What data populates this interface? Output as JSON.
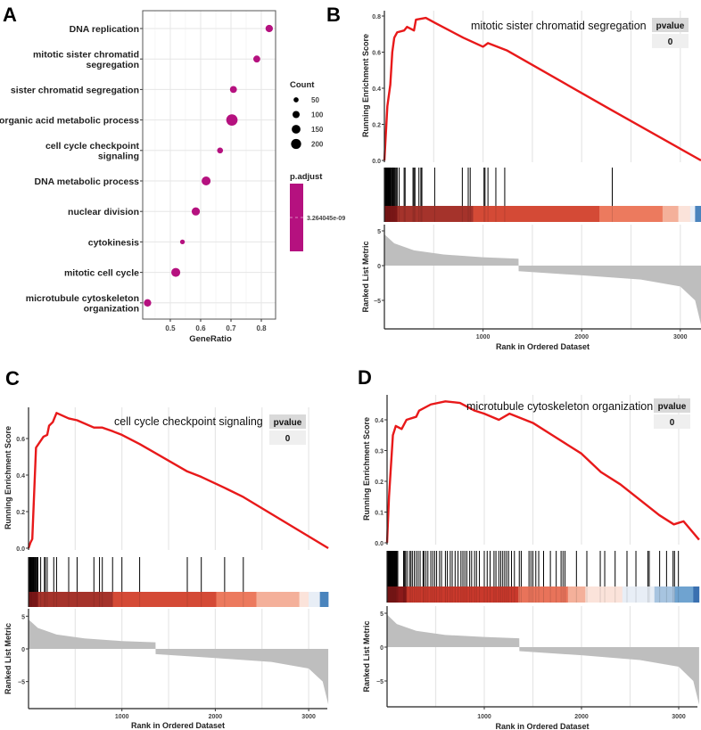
{
  "chart_data": [
    {
      "panel": "A",
      "type": "scatter",
      "title": "",
      "xlabel": "GeneRatio",
      "ylabel": "",
      "xlim": [
        0.409,
        0.847
      ],
      "xticks": [
        0.5,
        0.6,
        0.7,
        0.8
      ],
      "categories": [
        [
          "DNA replication"
        ],
        [
          "mitotic sister chromatid",
          "segregation"
        ],
        [
          "sister chromatid segregation"
        ],
        [
          "organic acid metabolic process"
        ],
        [
          "cell cycle checkpoint",
          "signaling"
        ],
        [
          "DNA metabolic process"
        ],
        [
          "nuclear division"
        ],
        [
          "cytokinesis"
        ],
        [
          "mitotic cell cycle"
        ],
        [
          "microtubule cytoskeleton",
          "organization"
        ]
      ],
      "gene_ratio": [
        0.826,
        0.785,
        0.708,
        0.703,
        0.664,
        0.618,
        0.584,
        0.54,
        0.518,
        0.425
      ],
      "count": [
        85,
        75,
        75,
        200,
        55,
        125,
        105,
        35,
        125,
        85
      ],
      "p_adjust": [
        3.264045e-09,
        3.264045e-09,
        3.264045e-09,
        3.264045e-09,
        3.264045e-09,
        3.264045e-09,
        3.264045e-09,
        3.264045e-09,
        3.264045e-09,
        3.264045e-09
      ],
      "point_color": "#b5117f",
      "legend": {
        "size_title": "Count",
        "size_values": [
          50,
          100,
          150,
          200
        ],
        "size_labels": [
          "50",
          "100",
          "150",
          "200"
        ],
        "color_title": "p.adjust",
        "color_label": "3.264045e-09",
        "placement": "right"
      }
    },
    {
      "panel": "B",
      "type": "line",
      "title": "mitotic sister chromatid segregation",
      "pvalue_header": "pvalue",
      "pvalue": "0",
      "ylabel": "Running Enrichment Score",
      "ylabel2": "Ranked List Metric",
      "xlabel": "Rank in Ordered Dataset",
      "xlim": [
        0,
        3210
      ],
      "xticks": [
        1000,
        2000,
        3000
      ],
      "xtick_labels": [
        "1000",
        "2000",
        "3000"
      ],
      "ylim": [
        0,
        0.8
      ],
      "yticks": [
        0,
        0.2,
        0.4,
        0.6,
        0.8
      ],
      "ytick_labels": [
        "0.0",
        "0.2",
        "0.4",
        "0.6",
        "0.8"
      ],
      "ylim2": [
        -8.5,
        5.5
      ],
      "yticks2": [
        5,
        0,
        -5
      ],
      "ytick_labels2": [
        "5",
        "0",
        "−5"
      ],
      "es": [
        [
          0,
          0
        ],
        [
          30,
          0.3
        ],
        [
          60,
          0.42
        ],
        [
          80,
          0.6
        ],
        [
          100,
          0.68
        ],
        [
          130,
          0.71
        ],
        [
          200,
          0.72
        ],
        [
          230,
          0.74
        ],
        [
          300,
          0.72
        ],
        [
          320,
          0.78
        ],
        [
          420,
          0.79
        ],
        [
          520,
          0.76
        ],
        [
          800,
          0.68
        ],
        [
          1000,
          0.63
        ],
        [
          1050,
          0.65
        ],
        [
          1240,
          0.61
        ],
        [
          2300,
          0.28
        ],
        [
          3210,
          0
        ]
      ],
      "hits": [
        2,
        8,
        14,
        20,
        26,
        32,
        38,
        44,
        50,
        56,
        62,
        70,
        78,
        86,
        94,
        102,
        110,
        120,
        130,
        150,
        200,
        210,
        290,
        300,
        310,
        350,
        370,
        380,
        510,
        790,
        850,
        870,
        1010,
        1020,
        1050,
        1130,
        1220,
        2310
      ],
      "color_bar": [
        [
          0,
          130,
          "#8b1a1a"
        ],
        [
          130,
          900,
          "#a5332b"
        ],
        [
          900,
          2180,
          "#d44a36"
        ],
        [
          2180,
          2820,
          "#ec7a5e"
        ],
        [
          2820,
          2980,
          "#f4b09a"
        ],
        [
          2980,
          3100,
          "#fbe3da"
        ],
        [
          3100,
          3150,
          "#e8eef6"
        ],
        [
          3150,
          3210,
          "#4a84bd"
        ]
      ],
      "ranked": [
        [
          0,
          4.5
        ],
        [
          100,
          3.2
        ],
        [
          300,
          2.2
        ],
        [
          600,
          1.6
        ],
        [
          1000,
          1.2
        ],
        [
          1360,
          1.0
        ],
        [
          1361,
          -0.8
        ],
        [
          2000,
          -1.4
        ],
        [
          2600,
          -2.0
        ],
        [
          3000,
          -3.0
        ],
        [
          3150,
          -5
        ],
        [
          3210,
          -8.5
        ]
      ]
    },
    {
      "panel": "C",
      "type": "line",
      "title": "cell cycle checkpoint signaling",
      "pvalue_header": "pvalue",
      "pvalue": "0",
      "ylabel": "Running Enrichment Score",
      "ylabel2": "Ranked List Metric",
      "xlabel": "Rank in Ordered Dataset",
      "xlim": [
        0,
        3210
      ],
      "xticks": [
        1000,
        2000,
        3000
      ],
      "xtick_labels": [
        "1000",
        "2000",
        "3000"
      ],
      "ylim": [
        0,
        0.75
      ],
      "yticks": [
        0,
        0.2,
        0.4,
        0.6
      ],
      "ytick_labels": [
        "0.0",
        "0.2",
        "0.4",
        "0.6"
      ],
      "ylim2": [
        -8.5,
        5.5
      ],
      "yticks2": [
        5,
        0,
        -5
      ],
      "ytick_labels2": [
        "5",
        "0",
        "−5"
      ],
      "es": [
        [
          0,
          0
        ],
        [
          20,
          0.03
        ],
        [
          40,
          0.05
        ],
        [
          60,
          0.3
        ],
        [
          80,
          0.55
        ],
        [
          120,
          0.58
        ],
        [
          160,
          0.61
        ],
        [
          200,
          0.62
        ],
        [
          220,
          0.67
        ],
        [
          260,
          0.69
        ],
        [
          300,
          0.74
        ],
        [
          430,
          0.71
        ],
        [
          520,
          0.7
        ],
        [
          700,
          0.66
        ],
        [
          790,
          0.66
        ],
        [
          900,
          0.64
        ],
        [
          1000,
          0.62
        ],
        [
          1190,
          0.57
        ],
        [
          1700,
          0.42
        ],
        [
          1850,
          0.39
        ],
        [
          2100,
          0.33
        ],
        [
          2300,
          0.28
        ],
        [
          3210,
          0
        ]
      ],
      "hits": [
        3,
        9,
        15,
        21,
        27,
        33,
        40,
        48,
        56,
        64,
        72,
        80,
        90,
        100,
        130,
        170,
        180,
        200,
        270,
        300,
        430,
        520,
        700,
        760,
        790,
        900,
        1000,
        1190,
        1700,
        1850,
        2100,
        2300
      ],
      "color_bar": [
        [
          0,
          100,
          "#8b1a1a"
        ],
        [
          100,
          900,
          "#a5332b"
        ],
        [
          900,
          2010,
          "#d44a36"
        ],
        [
          2010,
          2440,
          "#ec7a5e"
        ],
        [
          2440,
          2900,
          "#f4b09a"
        ],
        [
          2900,
          3000,
          "#fbe3da"
        ],
        [
          3000,
          3120,
          "#e8eef6"
        ],
        [
          3120,
          3210,
          "#4a84bd"
        ]
      ],
      "ranked": [
        [
          0,
          4.5
        ],
        [
          100,
          3.2
        ],
        [
          300,
          2.2
        ],
        [
          600,
          1.6
        ],
        [
          1000,
          1.2
        ],
        [
          1360,
          1.0
        ],
        [
          1361,
          -0.8
        ],
        [
          2000,
          -1.4
        ],
        [
          2600,
          -2.0
        ],
        [
          3000,
          -3.0
        ],
        [
          3150,
          -5
        ],
        [
          3210,
          -8.5
        ]
      ]
    },
    {
      "panel": "D",
      "type": "line",
      "title": "microtubule cytoskeleton organization",
      "pvalue_header": "pvalue",
      "pvalue": "0",
      "ylabel": "Running Enrichment Score",
      "ylabel2": "Ranked List Metric",
      "xlabel": "Rank in Ordered Dataset",
      "xlim": [
        0,
        3210
      ],
      "xticks": [
        1000,
        2000,
        3000
      ],
      "xtick_labels": [
        "1000",
        "2000",
        "3000"
      ],
      "ylim": [
        0,
        0.48
      ],
      "yticks": [
        0,
        0.1,
        0.2,
        0.3,
        0.4
      ],
      "ytick_labels": [
        "0.0",
        "0.1",
        "0.2",
        "0.3",
        "0.4"
      ],
      "ylim2": [
        -8.5,
        5.5
      ],
      "yticks2": [
        5,
        0,
        -5
      ],
      "ytick_labels2": [
        "5",
        "0",
        "−5"
      ],
      "es": [
        [
          0,
          0
        ],
        [
          20,
          0.15
        ],
        [
          60,
          0.35
        ],
        [
          90,
          0.38
        ],
        [
          150,
          0.37
        ],
        [
          200,
          0.4
        ],
        [
          300,
          0.41
        ],
        [
          330,
          0.43
        ],
        [
          450,
          0.45
        ],
        [
          600,
          0.46
        ],
        [
          750,
          0.455
        ],
        [
          900,
          0.43
        ],
        [
          1000,
          0.42
        ],
        [
          1150,
          0.4
        ],
        [
          1260,
          0.42
        ],
        [
          1500,
          0.39
        ],
        [
          1700,
          0.35
        ],
        [
          1850,
          0.32
        ],
        [
          2000,
          0.29
        ],
        [
          2200,
          0.23
        ],
        [
          2400,
          0.19
        ],
        [
          2600,
          0.14
        ],
        [
          2800,
          0.09
        ],
        [
          2950,
          0.06
        ],
        [
          3050,
          0.07
        ],
        [
          3210,
          0.01
        ]
      ],
      "hits": [
        2,
        8,
        14,
        20,
        26,
        32,
        38,
        44,
        50,
        56,
        62,
        68,
        74,
        80,
        86,
        92,
        100,
        110,
        170,
        180,
        190,
        205,
        230,
        245,
        260,
        280,
        300,
        320,
        340,
        370,
        380,
        400,
        420,
        450,
        470,
        490,
        510,
        540,
        560,
        600,
        620,
        650,
        670,
        700,
        730,
        760,
        780,
        800,
        820,
        850,
        870,
        900,
        920,
        950,
        1000,
        1030,
        1060,
        1100,
        1120,
        1150,
        1170,
        1190,
        1210,
        1230,
        1250,
        1280,
        1310,
        1360,
        1380,
        1460,
        1480,
        1500,
        1530,
        1560,
        1610,
        1680,
        1740,
        1790,
        1810,
        1830,
        1948,
        2055,
        2193,
        2239,
        2346,
        2468,
        2560,
        2683,
        2697,
        2804,
        2875,
        2942,
        2957,
        2997
      ],
      "color_bar": [
        [
          0,
          200,
          "#8b1a1a"
        ],
        [
          200,
          1350,
          "#c9392c"
        ],
        [
          1350,
          1860,
          "#e8735a"
        ],
        [
          1860,
          2040,
          "#f4b09a"
        ],
        [
          2040,
          2420,
          "#fbe3da"
        ],
        [
          2420,
          2750,
          "#e8eef6"
        ],
        [
          2750,
          2960,
          "#a7c4e0"
        ],
        [
          2960,
          3150,
          "#6fa3d0"
        ],
        [
          3150,
          3210,
          "#3a70b0"
        ]
      ],
      "ranked": [
        [
          0,
          4.8
        ],
        [
          100,
          3.4
        ],
        [
          300,
          2.4
        ],
        [
          600,
          1.8
        ],
        [
          1000,
          1.5
        ],
        [
          1360,
          1.3
        ],
        [
          1361,
          -0.6
        ],
        [
          2000,
          -1.2
        ],
        [
          2600,
          -1.9
        ],
        [
          3000,
          -2.9
        ],
        [
          3150,
          -5
        ],
        [
          3210,
          -8.5
        ]
      ]
    }
  ],
  "panel_labels": [
    "A",
    "B",
    "C",
    "D"
  ],
  "colors": {
    "es_line": "#e8191a",
    "hit": "#000000",
    "ranked_fill": "#bebebe",
    "grid": "#e6e6e6"
  }
}
